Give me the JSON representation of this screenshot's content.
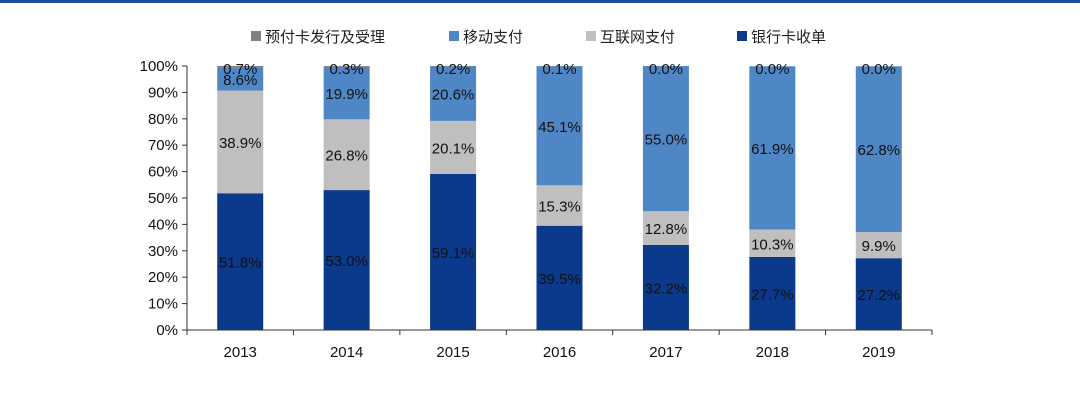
{
  "chart_data": {
    "type": "bar",
    "stacked": true,
    "categories": [
      "2013",
      "2014",
      "2015",
      "2016",
      "2017",
      "2018",
      "2019"
    ],
    "ylim": [
      0,
      100
    ],
    "yticks": [
      "0%",
      "10%",
      "20%",
      "30%",
      "40%",
      "50%",
      "60%",
      "70%",
      "80%",
      "90%",
      "100%"
    ],
    "grid": false,
    "legend_position": "top",
    "series": [
      {
        "name": "银行卡收单",
        "color": "#0b3a8c",
        "values": [
          51.8,
          53.0,
          59.1,
          39.5,
          32.2,
          27.7,
          27.2
        ],
        "labels": [
          "51.8%",
          "53.0%",
          "59.1%",
          "39.5%",
          "32.2%",
          "27.7%",
          "27.2%"
        ]
      },
      {
        "name": "互联网支付",
        "color": "#bfbfbf",
        "values": [
          38.9,
          26.8,
          20.1,
          15.3,
          12.8,
          10.3,
          9.9
        ],
        "labels": [
          "38.9%",
          "26.8%",
          "20.1%",
          "15.3%",
          "12.8%",
          "10.3%",
          "9.9%"
        ]
      },
      {
        "name": "移动支付",
        "color": "#4f86c6",
        "values": [
          8.6,
          19.9,
          20.6,
          45.1,
          55.0,
          61.9,
          62.8
        ],
        "labels": [
          "8.6%",
          "19.9%",
          "20.6%",
          "45.1%",
          "55.0%",
          "61.9%",
          "62.8%"
        ]
      },
      {
        "name": "预付卡发行及受理",
        "color": "#7f7f7f",
        "values": [
          0.7,
          0.3,
          0.2,
          0.1,
          0.0,
          0.0,
          0.0
        ],
        "labels": [
          "0.7%",
          "0.3%",
          "0.2%",
          "0.1%",
          "0.0%",
          "0.0%",
          "0.0%"
        ]
      }
    ],
    "legend_order": [
      3,
      2,
      1,
      0
    ]
  }
}
